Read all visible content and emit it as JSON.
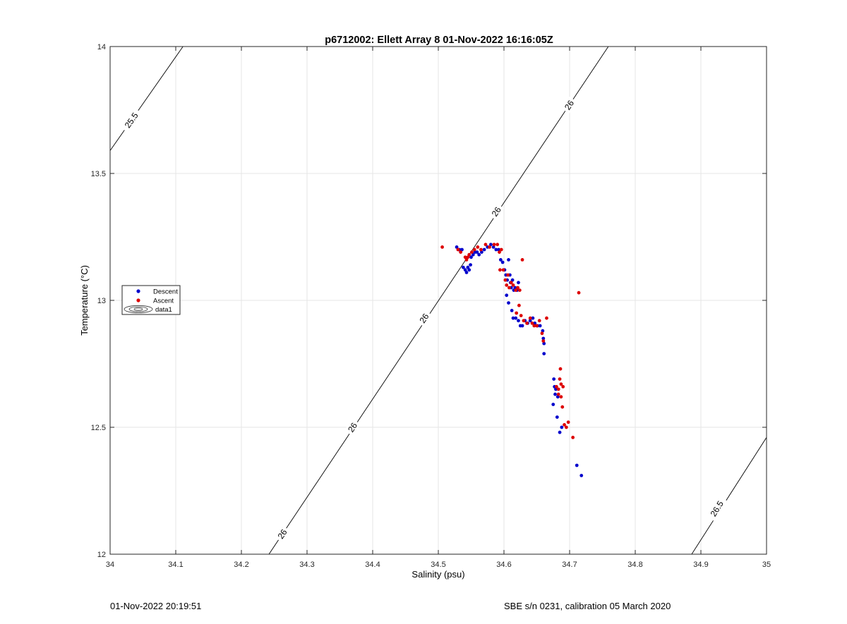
{
  "chart_data": {
    "type": "scatter",
    "title": "p6712002: Ellett Array 8 01-Nov-2022 16:16:05Z",
    "xlabel": "Salinity (psu)",
    "ylabel": "Temperature (°C)",
    "xlim": [
      34,
      35
    ],
    "ylim": [
      12,
      14
    ],
    "xticks": [
      "34",
      "34.1",
      "34.2",
      "34.3",
      "34.4",
      "34.5",
      "34.6",
      "34.7",
      "34.8",
      "34.9",
      "35"
    ],
    "yticks": [
      "12",
      "12.5",
      "13",
      "13.5",
      "14"
    ],
    "grid": true,
    "legend_position": "left",
    "legend": [
      "Descent",
      "Ascent",
      "data1"
    ],
    "colors": {
      "descent": "#0000cc",
      "ascent": "#dd0000",
      "contour": "#000000",
      "grid": "#e6e6e6"
    },
    "contours": [
      {
        "label": "25.5",
        "points": [
          [
            34,
            13.59
          ],
          [
            34.111,
            14
          ]
        ],
        "label_positions": [
          [
            34.032,
            13.71
          ]
        ]
      },
      {
        "label": "26",
        "points": [
          [
            34.242,
            12
          ],
          [
            34.759,
            14
          ]
        ],
        "label_positions": [
          [
            34.262,
            12.08
          ],
          [
            34.369,
            12.5
          ],
          [
            34.478,
            12.93
          ],
          [
            34.588,
            13.35
          ],
          [
            34.699,
            13.77
          ]
        ]
      },
      {
        "label": "26.5",
        "points": [
          [
            34.886,
            12
          ],
          [
            35,
            12.46
          ]
        ],
        "label_positions": [
          [
            34.924,
            12.18
          ]
        ]
      }
    ],
    "series": [
      {
        "name": "Descent",
        "points": [
          [
            34.528,
            13.21
          ],
          [
            34.532,
            13.2
          ],
          [
            34.536,
            13.2
          ],
          [
            34.538,
            13.13
          ],
          [
            34.541,
            13.12
          ],
          [
            34.543,
            13.11
          ],
          [
            34.545,
            13.13
          ],
          [
            34.547,
            13.12
          ],
          [
            34.549,
            13.14
          ],
          [
            34.55,
            13.17
          ],
          [
            34.553,
            13.18
          ],
          [
            34.556,
            13.19
          ],
          [
            34.559,
            13.19
          ],
          [
            34.562,
            13.18
          ],
          [
            34.566,
            13.19
          ],
          [
            34.57,
            13.2
          ],
          [
            34.575,
            13.21
          ],
          [
            34.58,
            13.22
          ],
          [
            34.584,
            13.21
          ],
          [
            34.588,
            13.2
          ],
          [
            34.592,
            13.2
          ],
          [
            34.595,
            13.16
          ],
          [
            34.598,
            13.15
          ],
          [
            34.601,
            13.12
          ],
          [
            34.603,
            13.1
          ],
          [
            34.605,
            13.08
          ],
          [
            34.607,
            13.16
          ],
          [
            34.609,
            13.1
          ],
          [
            34.61,
            13.07
          ],
          [
            34.611,
            13.05
          ],
          [
            34.613,
            13.08
          ],
          [
            34.615,
            13.04
          ],
          [
            34.617,
            13.05
          ],
          [
            34.62,
            13.04
          ],
          [
            34.622,
            13.07
          ],
          [
            34.604,
            13.02
          ],
          [
            34.607,
            12.99
          ],
          [
            34.612,
            12.96
          ],
          [
            34.614,
            12.93
          ],
          [
            34.618,
            12.93
          ],
          [
            34.622,
            12.92
          ],
          [
            34.625,
            12.9
          ],
          [
            34.628,
            12.9
          ],
          [
            34.632,
            12.92
          ],
          [
            34.636,
            12.91
          ],
          [
            34.64,
            12.92
          ],
          [
            34.644,
            12.93
          ],
          [
            34.647,
            12.91
          ],
          [
            34.651,
            12.9
          ],
          [
            34.655,
            12.9
          ],
          [
            34.659,
            12.88
          ],
          [
            34.66,
            12.85
          ],
          [
            34.661,
            12.83
          ],
          [
            34.661,
            12.79
          ],
          [
            34.676,
            12.69
          ],
          [
            34.677,
            12.66
          ],
          [
            34.679,
            12.65
          ],
          [
            34.678,
            12.63
          ],
          [
            34.682,
            12.62
          ],
          [
            34.675,
            12.59
          ],
          [
            34.681,
            12.54
          ],
          [
            34.685,
            12.48
          ],
          [
            34.688,
            12.5
          ],
          [
            34.711,
            12.35
          ],
          [
            34.718,
            12.31
          ]
        ]
      },
      {
        "name": "Ascent",
        "points": [
          [
            34.506,
            13.21
          ],
          [
            34.53,
            13.2
          ],
          [
            34.534,
            13.19
          ],
          [
            34.541,
            13.17
          ],
          [
            34.543,
            13.16
          ],
          [
            34.545,
            13.17
          ],
          [
            34.547,
            13.18
          ],
          [
            34.551,
            13.19
          ],
          [
            34.555,
            13.2
          ],
          [
            34.56,
            13.21
          ],
          [
            34.565,
            13.2
          ],
          [
            34.572,
            13.22
          ],
          [
            34.578,
            13.21
          ],
          [
            34.585,
            13.22
          ],
          [
            34.59,
            13.22
          ],
          [
            34.593,
            13.19
          ],
          [
            34.596,
            13.2
          ],
          [
            34.594,
            13.12
          ],
          [
            34.599,
            13.12
          ],
          [
            34.602,
            13.08
          ],
          [
            34.604,
            13.06
          ],
          [
            34.606,
            13.1
          ],
          [
            34.608,
            13.05
          ],
          [
            34.611,
            13.07
          ],
          [
            34.614,
            13.06
          ],
          [
            34.618,
            13.04
          ],
          [
            34.621,
            13.05
          ],
          [
            34.624,
            13.04
          ],
          [
            34.628,
            13.16
          ],
          [
            34.619,
            12.95
          ],
          [
            34.623,
            12.98
          ],
          [
            34.626,
            12.94
          ],
          [
            34.63,
            12.92
          ],
          [
            34.635,
            12.91
          ],
          [
            34.64,
            12.93
          ],
          [
            34.643,
            12.91
          ],
          [
            34.646,
            12.9
          ],
          [
            34.65,
            12.9
          ],
          [
            34.654,
            12.92
          ],
          [
            34.658,
            12.87
          ],
          [
            34.66,
            12.84
          ],
          [
            34.665,
            12.93
          ],
          [
            34.68,
            12.66
          ],
          [
            34.683,
            12.65
          ],
          [
            34.685,
            12.69
          ],
          [
            34.686,
            12.73
          ],
          [
            34.687,
            12.67
          ],
          [
            34.69,
            12.66
          ],
          [
            34.683,
            12.63
          ],
          [
            34.687,
            12.62
          ],
          [
            34.689,
            12.58
          ],
          [
            34.692,
            12.51
          ],
          [
            34.695,
            12.5
          ],
          [
            34.698,
            12.52
          ],
          [
            34.705,
            12.46
          ],
          [
            34.714,
            13.03
          ]
        ]
      }
    ]
  },
  "footer": {
    "timestamp": "01-Nov-2022 20:19:51",
    "calibration": "SBE s/n 0231, calibration 05 March 2020"
  }
}
